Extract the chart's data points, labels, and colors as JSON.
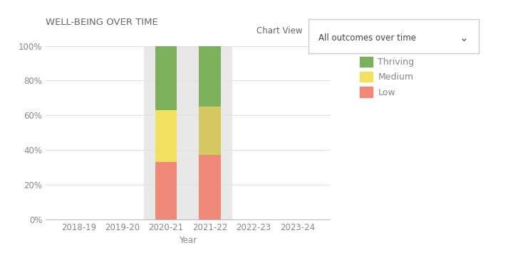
{
  "categories": [
    "2018-19",
    "2019-20",
    "2020-21",
    "2021-22",
    "2022-23",
    "2023-24"
  ],
  "low": [
    0,
    0,
    33,
    37,
    0,
    0
  ],
  "medium": [
    0,
    0,
    30,
    28,
    0,
    0
  ],
  "thriving": [
    0,
    0,
    37,
    35,
    0,
    0
  ],
  "color_low": "#F08878",
  "color_medium": "#F2E060",
  "color_thriving": "#7DB05A",
  "color_medium_2021_22": "#D4C860",
  "highlight_bg": "#E8E8E8",
  "title": "WELL-BEING OVER TIME",
  "xlabel": "Year",
  "ylim": [
    0,
    100
  ],
  "yticks": [
    0,
    20,
    40,
    60,
    80,
    100
  ],
  "ytick_labels": [
    "0%",
    "20%",
    "40%",
    "60%",
    "80%",
    "100%"
  ],
  "legend_labels": [
    "Thriving",
    "Medium",
    "Low"
  ],
  "chart_view_label": "Chart View",
  "chart_view_value": "All outcomes over time",
  "title_fontsize": 9.5,
  "label_fontsize": 8.5,
  "tick_fontsize": 8.5,
  "legend_fontsize": 9,
  "bg_color": "#FFFFFF",
  "plot_bg_color": "#FFFFFF",
  "grid_color": "#E0E0E0",
  "text_color": "#888888",
  "bar_width": 0.5
}
